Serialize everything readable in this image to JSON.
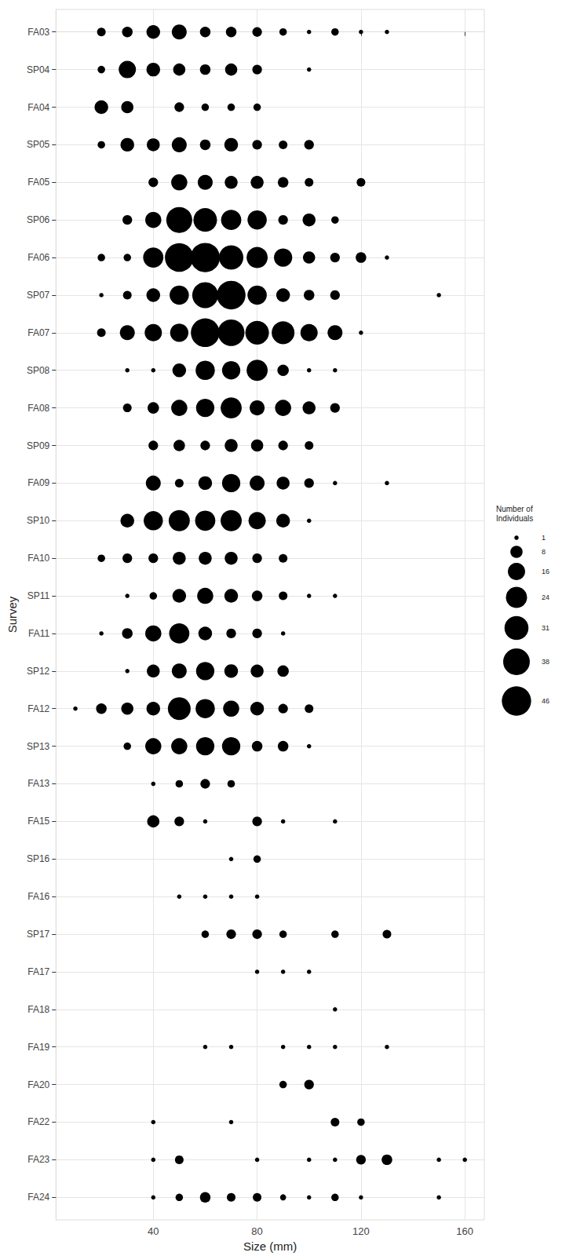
{
  "chart_data": {
    "type": "scatter",
    "xlabel": "Size (mm)",
    "ylabel": "Survey",
    "legend_title": "Number of\nIndividuals",
    "size_legend": [
      1,
      8,
      16,
      24,
      31,
      38,
      46
    ],
    "color": "#000000",
    "grid": true,
    "xlim": [
      2.5,
      167.5
    ],
    "xticks": [
      40,
      80,
      120,
      160
    ],
    "categories": [
      "FA03",
      "SP04",
      "FA04",
      "SP05",
      "FA05",
      "SP06",
      "FA06",
      "SP07",
      "FA07",
      "SP08",
      "FA08",
      "SP09",
      "FA09",
      "SP10",
      "FA10",
      "SP11",
      "FA11",
      "SP12",
      "FA12",
      "SP13",
      "FA13",
      "FA15",
      "SP16",
      "FA16",
      "SP17",
      "FA17",
      "FA18",
      "FA19",
      "FA20",
      "FA22",
      "FA23",
      "FA24"
    ],
    "x": [
      [
        20,
        30,
        40,
        50,
        60,
        70,
        80,
        90,
        100,
        110,
        120,
        130
      ],
      [
        20,
        30,
        40,
        50,
        60,
        70,
        80,
        100
      ],
      [
        20,
        30,
        50,
        60,
        70,
        80
      ],
      [
        20,
        30,
        40,
        50,
        60,
        70,
        80,
        90,
        100
      ],
      [
        40,
        50,
        60,
        70,
        80,
        90,
        100,
        120
      ],
      [
        30,
        40,
        50,
        60,
        70,
        80,
        90,
        100,
        110
      ],
      [
        20,
        30,
        40,
        50,
        60,
        70,
        80,
        90,
        100,
        110,
        120,
        130
      ],
      [
        20,
        30,
        40,
        50,
        60,
        70,
        80,
        90,
        100,
        110,
        150
      ],
      [
        20,
        30,
        40,
        50,
        60,
        70,
        80,
        90,
        100,
        110,
        120
      ],
      [
        30,
        40,
        50,
        60,
        70,
        80,
        90,
        100,
        110
      ],
      [
        30,
        40,
        50,
        60,
        70,
        80,
        90,
        100,
        110
      ],
      [
        40,
        50,
        60,
        70,
        80,
        90,
        100
      ],
      [
        40,
        50,
        60,
        70,
        80,
        90,
        100,
        110,
        130
      ],
      [
        30,
        40,
        50,
        60,
        70,
        80,
        90,
        100
      ],
      [
        20,
        30,
        40,
        50,
        60,
        70,
        80,
        90
      ],
      [
        30,
        40,
        50,
        60,
        70,
        80,
        90,
        100,
        110
      ],
      [
        20,
        30,
        40,
        50,
        60,
        70,
        80,
        90
      ],
      [
        30,
        40,
        50,
        60,
        70,
        80,
        90
      ],
      [
        10,
        20,
        30,
        40,
        50,
        60,
        70,
        80,
        90,
        100
      ],
      [
        30,
        40,
        50,
        60,
        70,
        80,
        90,
        100
      ],
      [
        40,
        50,
        60,
        70
      ],
      [
        40,
        50,
        60,
        80,
        90,
        110
      ],
      [
        70,
        80
      ],
      [
        50,
        60,
        70,
        80
      ],
      [
        60,
        70,
        80,
        90,
        110,
        130
      ],
      [
        80,
        90,
        100
      ],
      [
        110
      ],
      [
        60,
        70,
        90,
        100,
        110,
        130
      ],
      [
        90,
        100
      ],
      [
        40,
        70,
        110,
        120
      ],
      [
        40,
        50,
        80,
        100,
        110,
        120,
        130,
        150,
        160
      ],
      [
        40,
        50,
        60,
        70,
        80,
        90,
        100,
        110,
        120,
        150
      ]
    ],
    "values": [
      [
        4,
        6,
        10,
        12,
        6,
        6,
        5,
        3,
        1,
        3,
        1,
        1
      ],
      [
        3,
        16,
        10,
        8,
        6,
        8,
        5,
        1
      ],
      [
        10,
        8,
        5,
        3,
        3,
        3
      ],
      [
        3,
        10,
        9,
        12,
        6,
        10,
        5,
        4,
        5
      ],
      [
        5,
        14,
        12,
        9,
        9,
        6,
        4,
        4
      ],
      [
        5,
        14,
        36,
        30,
        22,
        20,
        5,
        9,
        3
      ],
      [
        3,
        3,
        22,
        44,
        46,
        32,
        24,
        18,
        8,
        5,
        6,
        1
      ],
      [
        1,
        4,
        10,
        20,
        36,
        44,
        20,
        10,
        6,
        5,
        1
      ],
      [
        4,
        12,
        16,
        18,
        44,
        38,
        30,
        28,
        16,
        12,
        1
      ],
      [
        1,
        1,
        10,
        20,
        18,
        24,
        7,
        1,
        1
      ],
      [
        4,
        7,
        14,
        18,
        24,
        12,
        14,
        9,
        5
      ],
      [
        5,
        7,
        5,
        9,
        8,
        5,
        4
      ],
      [
        12,
        4,
        10,
        18,
        12,
        9,
        5,
        1,
        1
      ],
      [
        10,
        20,
        24,
        22,
        24,
        16,
        10,
        1
      ],
      [
        3,
        5,
        5,
        9,
        9,
        9,
        5,
        4
      ],
      [
        1,
        3,
        10,
        14,
        10,
        6,
        4,
        1,
        1
      ],
      [
        1,
        6,
        14,
        22,
        10,
        5,
        5,
        1
      ],
      [
        1,
        9,
        12,
        18,
        10,
        9,
        7
      ],
      [
        1,
        6,
        8,
        10,
        28,
        20,
        14,
        10,
        5,
        4
      ],
      [
        3,
        14,
        14,
        18,
        18,
        6,
        6,
        1
      ],
      [
        1,
        3,
        5,
        3
      ],
      [
        8,
        5,
        1,
        5,
        1,
        1
      ],
      [
        1,
        3
      ],
      [
        1,
        1,
        1,
        1
      ],
      [
        3,
        5,
        5,
        3,
        3,
        4
      ],
      [
        1,
        1,
        1
      ],
      [
        1
      ],
      [
        1,
        1,
        1,
        1,
        1,
        1
      ],
      [
        3,
        5
      ],
      [
        1,
        1,
        4,
        3
      ],
      [
        1,
        4,
        1,
        1,
        1,
        5,
        6,
        1,
        1
      ],
      [
        1,
        3,
        6,
        4,
        4,
        2,
        1,
        3,
        1,
        1
      ]
    ]
  }
}
